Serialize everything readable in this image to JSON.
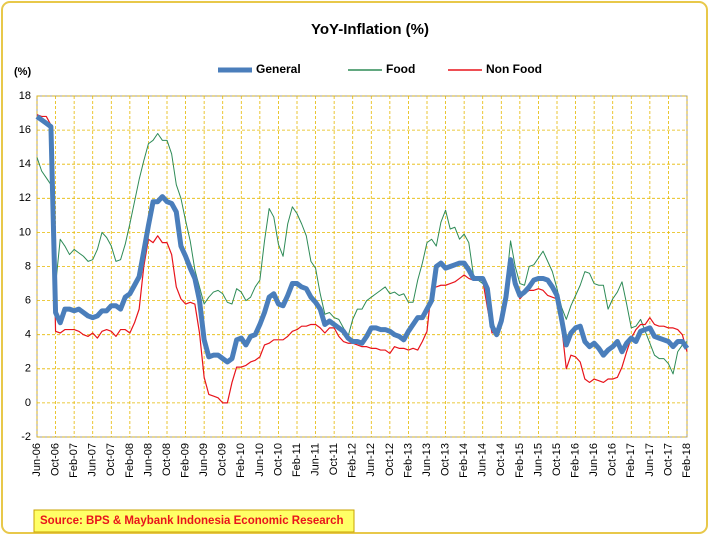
{
  "chart_data": {
    "type": "line",
    "title": "YoY-Inflation (%)",
    "y_label": "(%)",
    "source": "Source: BPS & Maybank Indonesia Economic Research",
    "categories": [
      "Jun-06",
      null,
      null,
      null,
      "Oct-06",
      null,
      null,
      null,
      "Feb-07",
      null,
      null,
      null,
      "Jun-07",
      null,
      null,
      null,
      "Oct-07",
      null,
      null,
      null,
      "Feb-08",
      null,
      null,
      null,
      "Jun-08",
      null,
      null,
      null,
      "Oct-08",
      null,
      null,
      null,
      "Feb-09",
      null,
      null,
      null,
      "Jun-09",
      null,
      null,
      null,
      "Oct-09",
      null,
      null,
      null,
      "Feb-10",
      null,
      null,
      null,
      "Jun-10",
      null,
      null,
      null,
      "Oct-10",
      null,
      null,
      null,
      "Feb-11",
      null,
      null,
      null,
      "Jun-11",
      null,
      null,
      null,
      "Oct-11",
      null,
      null,
      null,
      "Feb-12",
      null,
      null,
      null,
      "Jun-12",
      null,
      null,
      null,
      "Oct-12",
      null,
      null,
      null,
      "Feb-13",
      null,
      null,
      null,
      "Jun-13",
      null,
      null,
      null,
      "Oct-13",
      null,
      null,
      null,
      "Feb-14",
      null,
      null,
      null,
      "Jun-14",
      null,
      null,
      null,
      "Oct-14",
      null,
      null,
      null,
      "Feb-15",
      null,
      null,
      null,
      "Jun-15",
      null,
      null,
      null,
      "Oct-15",
      null,
      null,
      null,
      "Feb-16",
      null,
      null,
      null,
      "Jun-16",
      null,
      null,
      null,
      "Oct-16",
      null,
      null,
      null,
      "Feb-17",
      null,
      null,
      null,
      "Jun-17",
      null,
      null,
      null,
      "Oct-17",
      null,
      null,
      null,
      "Feb-18"
    ],
    "series": [
      {
        "name": "General",
        "color": "#4a7ebb",
        "width": 5,
        "values": [
          16.8,
          16.6,
          16.4,
          16.2,
          5.3,
          4.7,
          5.5,
          5.5,
          5.4,
          5.5,
          5.3,
          5.1,
          5.0,
          5.1,
          5.4,
          5.4,
          5.7,
          5.7,
          5.5,
          6.2,
          6.4,
          6.9,
          7.4,
          8.9,
          10.4,
          11.8,
          11.8,
          12.1,
          11.8,
          11.7,
          11.2,
          9.2,
          8.6,
          7.9,
          7.3,
          6.0,
          3.7,
          2.7,
          2.8,
          2.8,
          2.6,
          2.4,
          2.6,
          3.7,
          3.8,
          3.4,
          3.9,
          4.0,
          4.6,
          5.3,
          6.2,
          6.4,
          5.8,
          5.7,
          6.3,
          7.0,
          7.0,
          6.8,
          6.7,
          6.2,
          5.9,
          5.5,
          4.6,
          4.8,
          4.6,
          4.4,
          4.2,
          3.8,
          3.6,
          3.6,
          3.5,
          3.9,
          4.4,
          4.4,
          4.3,
          4.3,
          4.2,
          4.0,
          3.9,
          3.7,
          4.2,
          4.6,
          5.0,
          5.0,
          5.5,
          6.0,
          8.0,
          8.2,
          7.9,
          8.0,
          8.1,
          8.2,
          8.2,
          7.8,
          7.3,
          7.3,
          7.3,
          6.7,
          4.5,
          4.0,
          4.8,
          6.2,
          8.4,
          7.0,
          6.3,
          6.5,
          6.8,
          7.2,
          7.3,
          7.3,
          7.2,
          6.8,
          6.3,
          4.9,
          3.4,
          4.1,
          4.4,
          4.5,
          3.6,
          3.3,
          3.5,
          3.2,
          2.8,
          3.1,
          3.3,
          3.6,
          3.0,
          3.5,
          3.8,
          3.6,
          4.2,
          4.3,
          4.4,
          3.9,
          3.8,
          3.7,
          3.6,
          3.3,
          3.6,
          3.6,
          3.2
        ]
      },
      {
        "name": "Food",
        "color": "#2e8b57",
        "width": 1,
        "values": [
          14.4,
          13.6,
          13.2,
          12.8,
          6.9,
          9.6,
          9.2,
          8.7,
          9.0,
          8.8,
          8.6,
          8.3,
          8.4,
          9.0,
          10.0,
          9.7,
          9.2,
          8.3,
          8.4,
          9.3,
          10.5,
          11.8,
          13.1,
          14.2,
          15.2,
          15.4,
          15.8,
          15.4,
          15.4,
          14.6,
          12.8,
          12.0,
          10.7,
          9.5,
          7.8,
          6.8,
          5.8,
          6.2,
          6.5,
          6.6,
          6.4,
          5.9,
          5.8,
          6.7,
          6.5,
          6.0,
          6.2,
          6.8,
          7.2,
          9.5,
          11.4,
          10.9,
          9.3,
          8.6,
          10.5,
          11.5,
          11.1,
          10.5,
          9.8,
          8.3,
          7.9,
          6.4,
          5.2,
          5.3,
          5.0,
          4.9,
          4.4,
          3.9,
          4.9,
          5.5,
          5.5,
          6.0,
          6.2,
          6.4,
          6.6,
          6.8,
          6.4,
          6.5,
          6.3,
          6.4,
          5.9,
          5.9,
          7.2,
          8.2,
          9.4,
          9.6,
          9.2,
          10.6,
          11.3,
          10.2,
          10.3,
          9.6,
          9.9,
          9.4,
          7.5,
          7.2,
          7.0,
          6.8,
          4.9,
          4.1,
          4.7,
          6.8,
          9.5,
          8.0,
          7.0,
          6.9,
          8.0,
          8.1,
          8.5,
          8.9,
          8.3,
          7.7,
          6.7,
          5.6,
          4.9,
          5.7,
          6.3,
          6.9,
          7.7,
          7.6,
          7.0,
          6.9,
          6.9,
          5.5,
          6.1,
          6.5,
          7.1,
          5.8,
          4.4,
          4.5,
          4.9,
          4.2,
          3.5,
          2.8,
          2.6,
          2.6,
          2.3,
          1.7,
          3.0,
          3.4,
          3.6
        ]
      },
      {
        "name": "Non Food",
        "color": "#e8141b",
        "width": 1.2,
        "values": [
          16.9,
          16.8,
          16.8,
          16.3,
          4.2,
          4.1,
          4.3,
          4.3,
          4.3,
          4.2,
          4.0,
          3.9,
          4.1,
          3.8,
          4.2,
          4.3,
          4.2,
          3.9,
          4.3,
          4.3,
          4.1,
          4.7,
          5.5,
          8.0,
          9.6,
          9.4,
          9.8,
          9.4,
          9.4,
          8.7,
          6.8,
          6.1,
          5.8,
          5.9,
          5.8,
          4.1,
          1.5,
          0.5,
          0.4,
          0.3,
          0.0,
          0.0,
          1.2,
          2.1,
          2.1,
          2.2,
          2.4,
          2.5,
          2.7,
          3.4,
          3.5,
          3.7,
          3.7,
          3.7,
          3.9,
          4.2,
          4.3,
          4.5,
          4.5,
          4.6,
          4.6,
          4.4,
          4.1,
          4.4,
          4.4,
          3.9,
          3.6,
          3.5,
          3.5,
          3.4,
          3.3,
          3.3,
          3.2,
          3.2,
          3.1,
          3.1,
          2.9,
          3.3,
          3.2,
          3.2,
          3.1,
          3.2,
          3.1,
          3.6,
          4.2,
          6.8,
          6.8,
          6.9,
          6.9,
          7.0,
          7.1,
          7.3,
          7.5,
          7.3,
          7.2,
          7.4,
          7.2,
          5.6,
          4.1,
          4.3,
          5.1,
          6.7,
          8.0,
          7.3,
          6.1,
          6.4,
          6.6,
          6.6,
          6.7,
          6.6,
          6.3,
          6.2,
          6.1,
          4.5,
          2.0,
          2.8,
          2.7,
          2.4,
          1.4,
          1.2,
          1.4,
          1.3,
          1.2,
          1.4,
          1.4,
          1.5,
          2.1,
          3.0,
          3.8,
          4.3,
          4.6,
          4.6,
          5.0,
          4.6,
          4.5,
          4.5,
          4.4,
          4.4,
          4.3,
          4.0,
          3.0
        ]
      }
    ],
    "ylim": [
      -2,
      18
    ],
    "yticks": [
      -2,
      0,
      2,
      4,
      6,
      8,
      10,
      12,
      14,
      16,
      18
    ],
    "grid": true,
    "grid_color": "#e6b800",
    "legend": "top"
  }
}
